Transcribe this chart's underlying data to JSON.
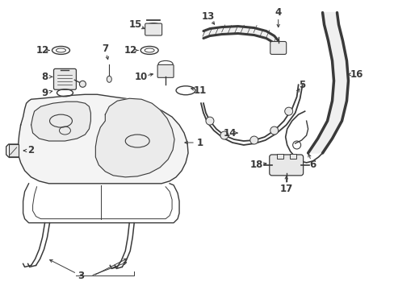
{
  "bg_color": "#ffffff",
  "line_color": "#3a3a3a",
  "figsize": [
    4.89,
    3.6
  ],
  "dpi": 100,
  "lw": 1.0
}
